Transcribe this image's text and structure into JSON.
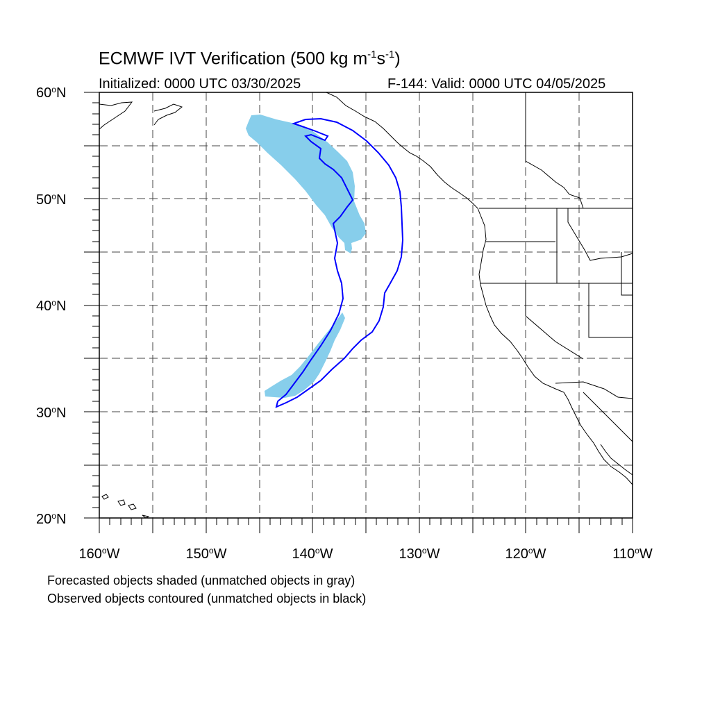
{
  "title": {
    "main": "ECMWF IVT Verification (500 kg m",
    "sup1": "-1",
    "mid": "s",
    "sup2": "-1",
    "end": ")"
  },
  "initialized": "Initialized: 0000 UTC 03/30/2025",
  "valid": "F-144: Valid: 0000 UTC 04/05/2025",
  "map_extent": {
    "lon_min": -160,
    "lon_max": -110,
    "lat_min": 20,
    "lat_max": 60
  },
  "lat_labels": [
    {
      "num": "60",
      "deg": "o",
      "dir": "N"
    },
    {
      "num": "50",
      "deg": "o",
      "dir": "N"
    },
    {
      "num": "40",
      "deg": "o",
      "dir": "N"
    },
    {
      "num": "30",
      "deg": "o",
      "dir": "N"
    },
    {
      "num": "20",
      "deg": "o",
      "dir": "N"
    }
  ],
  "lon_labels": [
    {
      "num": "160",
      "deg": "o",
      "dir": "W"
    },
    {
      "num": "150",
      "deg": "o",
      "dir": "W"
    },
    {
      "num": "140",
      "deg": "o",
      "dir": "W"
    },
    {
      "num": "130",
      "deg": "o",
      "dir": "W"
    },
    {
      "num": "120",
      "deg": "o",
      "dir": "W"
    },
    {
      "num": "110",
      "deg": "o",
      "dir": "W"
    }
  ],
  "legend_notes": [
    "Forecasted objects shaded (unmatched objects in gray)",
    "Observed objects contoured (unmatched objects in black)"
  ],
  "colors": {
    "forecast_fill": "#87ceeb",
    "observed_contour": "#0000ff",
    "coastline": "#000000",
    "grid": "#444444"
  }
}
